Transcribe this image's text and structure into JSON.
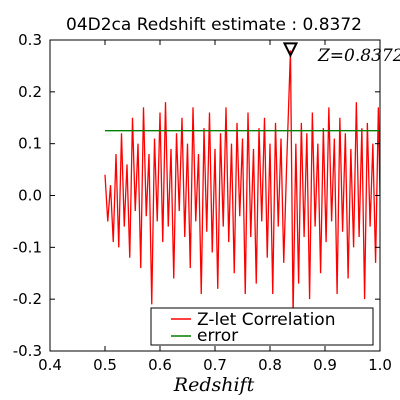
{
  "chart_data": {
    "type": "line",
    "title": "04D2ca Redshift estimate : 0.8372",
    "xlabel": "Redshift",
    "ylabel": "",
    "xlim": [
      0.4,
      1.0
    ],
    "ylim": [
      -0.3,
      0.3
    ],
    "x_ticks": [
      "0.4",
      "0.5",
      "0.6",
      "0.7",
      "0.8",
      "0.9",
      "1.0"
    ],
    "y_ticks": [
      "0.3",
      "0.2",
      "0.1",
      "0.0",
      "-0.1",
      "-0.2",
      "-0.3"
    ],
    "annotation": {
      "label": "Z=0.8372",
      "marker_x": 0.8372,
      "marker_y": 0.28,
      "marker": "downward-triangle"
    },
    "legend": {
      "placement": "lower-right"
    },
    "colors": {
      "correlation": "#ff0000",
      "error": "#008000"
    },
    "series": [
      {
        "name": "Z-let Correlation",
        "color": "#ff0000",
        "x": [
          0.5,
          0.505,
          0.51,
          0.515,
          0.52,
          0.525,
          0.53,
          0.535,
          0.54,
          0.545,
          0.55,
          0.555,
          0.56,
          0.565,
          0.57,
          0.575,
          0.58,
          0.585,
          0.59,
          0.595,
          0.6,
          0.605,
          0.61,
          0.615,
          0.62,
          0.625,
          0.63,
          0.635,
          0.64,
          0.645,
          0.65,
          0.655,
          0.66,
          0.665,
          0.67,
          0.675,
          0.68,
          0.685,
          0.69,
          0.695,
          0.7,
          0.705,
          0.71,
          0.715,
          0.72,
          0.725,
          0.73,
          0.735,
          0.74,
          0.745,
          0.75,
          0.755,
          0.76,
          0.765,
          0.77,
          0.775,
          0.78,
          0.785,
          0.79,
          0.795,
          0.8,
          0.805,
          0.81,
          0.815,
          0.82,
          0.825,
          0.83,
          0.8372,
          0.842,
          0.847,
          0.852,
          0.857,
          0.862,
          0.867,
          0.872,
          0.877,
          0.882,
          0.887,
          0.892,
          0.897,
          0.902,
          0.907,
          0.912,
          0.917,
          0.922,
          0.927,
          0.932,
          0.937,
          0.942,
          0.947,
          0.952,
          0.957,
          0.962,
          0.967,
          0.972,
          0.977,
          0.982,
          0.987,
          0.992,
          0.997,
          1.0
        ],
        "y": [
          0.04,
          -0.05,
          0.02,
          -0.09,
          0.08,
          -0.1,
          0.12,
          -0.06,
          0.06,
          -0.12,
          0.15,
          -0.03,
          0.1,
          -0.14,
          0.17,
          -0.04,
          0.08,
          -0.21,
          0.11,
          -0.05,
          0.16,
          -0.09,
          0.18,
          -0.06,
          0.09,
          -0.16,
          0.12,
          -0.03,
          0.15,
          -0.08,
          0.1,
          -0.14,
          0.17,
          -0.05,
          0.08,
          -0.19,
          0.13,
          -0.07,
          0.16,
          -0.11,
          0.09,
          -0.18,
          0.12,
          -0.06,
          0.17,
          -0.09,
          0.1,
          -0.15,
          0.14,
          -0.04,
          0.11,
          -0.19,
          0.16,
          -0.08,
          0.09,
          -0.17,
          0.13,
          -0.05,
          0.15,
          -0.12,
          0.1,
          -0.19,
          0.14,
          -0.06,
          0.11,
          -0.13,
          0.05,
          0.28,
          -0.23,
          0.1,
          -0.17,
          0.14,
          -0.08,
          0.12,
          -0.2,
          0.16,
          -0.06,
          0.1,
          -0.15,
          0.13,
          -0.09,
          0.17,
          -0.05,
          0.11,
          -0.19,
          0.15,
          -0.07,
          0.12,
          -0.16,
          0.09,
          -0.1,
          0.18,
          -0.08,
          0.13,
          -0.2,
          0.14,
          -0.06,
          0.1,
          -0.13,
          0.17,
          0.0
        ]
      },
      {
        "name": "error",
        "color": "#008000",
        "x": [
          0.5,
          1.0
        ],
        "y": [
          0.125,
          0.125
        ]
      }
    ]
  }
}
